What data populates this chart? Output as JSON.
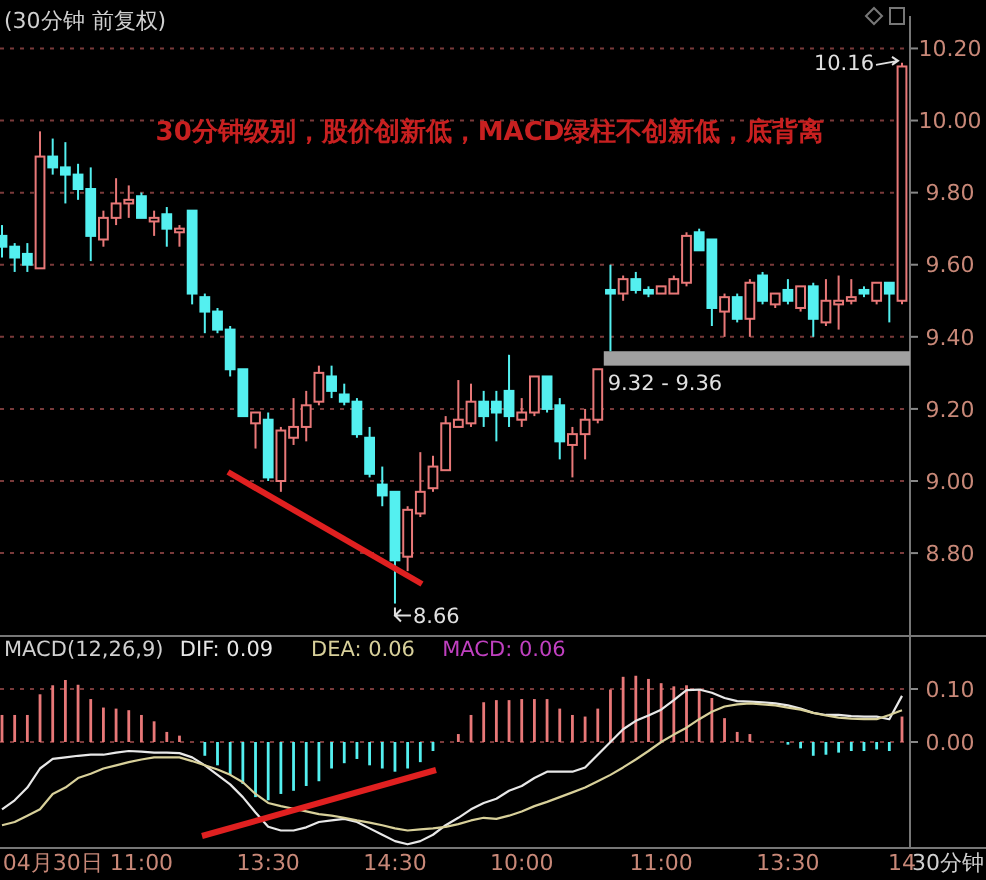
{
  "chart_data": [
    {
      "type": "candlestick",
      "title": "(30分钟 前复权)",
      "categories": [
        null,
        null,
        null,
        null,
        null,
        null,
        null,
        null,
        null,
        null,
        null,
        null,
        null,
        null,
        null,
        null,
        null,
        null,
        null,
        null,
        null,
        null,
        null,
        null,
        null,
        null,
        null,
        null,
        null,
        null,
        null,
        null,
        null,
        null,
        null,
        null,
        null,
        null,
        null,
        null,
        null,
        null,
        null,
        null,
        null,
        null,
        null,
        null,
        null,
        null,
        null,
        null,
        null,
        null,
        null,
        null,
        null,
        null,
        null,
        null,
        null,
        null,
        null,
        null,
        null,
        null,
        null,
        null,
        null,
        null,
        null,
        null
      ],
      "ohlc": [
        [
          9.68,
          9.71,
          9.62,
          9.65
        ],
        [
          9.65,
          9.66,
          9.58,
          9.62
        ],
        [
          9.63,
          9.66,
          9.58,
          9.6
        ],
        [
          9.59,
          9.97,
          9.59,
          9.9
        ],
        [
          9.9,
          9.95,
          9.85,
          9.87
        ],
        [
          9.87,
          9.94,
          9.77,
          9.85
        ],
        [
          9.85,
          9.88,
          9.78,
          9.81
        ],
        [
          9.81,
          9.87,
          9.61,
          9.68
        ],
        [
          9.67,
          9.75,
          9.65,
          9.73
        ],
        [
          9.73,
          9.84,
          9.71,
          9.77
        ],
        [
          9.77,
          9.82,
          9.73,
          9.78
        ],
        [
          9.79,
          9.8,
          9.73,
          9.73
        ],
        [
          9.72,
          9.75,
          9.68,
          9.73
        ],
        [
          9.74,
          9.76,
          9.65,
          9.7
        ],
        [
          9.69,
          9.71,
          9.65,
          9.7
        ],
        [
          9.75,
          9.75,
          9.49,
          9.52
        ],
        [
          9.51,
          9.52,
          9.41,
          9.47
        ],
        [
          9.47,
          9.48,
          9.41,
          9.42
        ],
        [
          9.42,
          9.43,
          9.29,
          9.31
        ],
        [
          9.31,
          9.31,
          9.18,
          9.18
        ],
        [
          9.16,
          9.19,
          9.09,
          9.19
        ],
        [
          9.17,
          9.19,
          9.0,
          9.01
        ],
        [
          9.0,
          9.15,
          8.97,
          9.14
        ],
        [
          9.12,
          9.23,
          9.1,
          9.15
        ],
        [
          9.15,
          9.25,
          9.11,
          9.21
        ],
        [
          9.22,
          9.32,
          9.21,
          9.3
        ],
        [
          9.29,
          9.32,
          9.23,
          9.25
        ],
        [
          9.24,
          9.27,
          9.21,
          9.22
        ],
        [
          9.22,
          9.23,
          9.12,
          9.13
        ],
        [
          9.12,
          9.15,
          9.01,
          9.02
        ],
        [
          8.99,
          9.04,
          8.93,
          8.96
        ],
        [
          8.97,
          8.97,
          8.66,
          8.78
        ],
        [
          8.79,
          8.93,
          8.75,
          8.92
        ],
        [
          8.91,
          9.08,
          8.9,
          8.97
        ],
        [
          8.98,
          9.07,
          8.97,
          9.04
        ],
        [
          9.03,
          9.18,
          9.03,
          9.16
        ],
        [
          9.15,
          9.28,
          9.15,
          9.17
        ],
        [
          9.16,
          9.27,
          9.15,
          9.22
        ],
        [
          9.22,
          9.25,
          9.15,
          9.18
        ],
        [
          9.22,
          9.25,
          9.11,
          9.19
        ],
        [
          9.25,
          9.35,
          9.15,
          9.18
        ],
        [
          9.17,
          9.23,
          9.15,
          9.19
        ],
        [
          9.19,
          9.29,
          9.18,
          9.29
        ],
        [
          9.29,
          9.29,
          9.19,
          9.2
        ],
        [
          9.21,
          9.23,
          9.06,
          9.11
        ],
        [
          9.1,
          9.15,
          9.01,
          9.13
        ],
        [
          9.13,
          9.2,
          9.06,
          9.17
        ],
        [
          9.17,
          9.31,
          9.16,
          9.31
        ],
        [
          9.53,
          9.6,
          9.36,
          9.52
        ],
        [
          9.52,
          9.57,
          9.5,
          9.56
        ],
        [
          9.56,
          9.58,
          9.52,
          9.53
        ],
        [
          9.53,
          9.54,
          9.51,
          9.52
        ],
        [
          9.52,
          9.54,
          9.52,
          9.54
        ],
        [
          9.52,
          9.57,
          9.52,
          9.56
        ],
        [
          9.55,
          9.69,
          9.54,
          9.68
        ],
        [
          9.69,
          9.7,
          9.64,
          9.64
        ],
        [
          9.67,
          9.67,
          9.43,
          9.48
        ],
        [
          9.47,
          9.52,
          9.4,
          9.51
        ],
        [
          9.51,
          9.52,
          9.44,
          9.45
        ],
        [
          9.45,
          9.56,
          9.4,
          9.55
        ],
        [
          9.57,
          9.58,
          9.49,
          9.5
        ],
        [
          9.49,
          9.52,
          9.48,
          9.52
        ],
        [
          9.53,
          9.56,
          9.49,
          9.5
        ],
        [
          9.48,
          9.54,
          9.47,
          9.54
        ],
        [
          9.54,
          9.55,
          9.4,
          9.45
        ],
        [
          9.44,
          9.56,
          9.43,
          9.5
        ],
        [
          9.49,
          9.57,
          9.42,
          9.5
        ],
        [
          9.5,
          9.56,
          9.49,
          9.51
        ],
        [
          9.53,
          9.54,
          9.51,
          9.52
        ],
        [
          9.5,
          9.55,
          9.49,
          9.55
        ],
        [
          9.55,
          9.55,
          9.44,
          9.52
        ],
        [
          9.5,
          10.16,
          9.49,
          10.15
        ]
      ],
      "ylim": [
        8.57,
        10.29
      ],
      "yticks": [
        {
          "value": 8.8,
          "label": "8.80"
        },
        {
          "value": 9.0,
          "label": "9.00"
        },
        {
          "value": 9.2,
          "label": "9.20"
        },
        {
          "value": 9.4,
          "label": "9.40"
        },
        {
          "value": 9.6,
          "label": "9.60"
        },
        {
          "value": 9.8,
          "label": "9.80"
        },
        {
          "value": 10.0,
          "label": "10.00"
        },
        {
          "value": 10.2,
          "label": "10.20"
        }
      ],
      "grid": "y",
      "tick_labels": "y",
      "bands": [
        {
          "axis": "y",
          "from": 9.32,
          "to": 9.36,
          "label": "9.32 - 9.36",
          "color": "#a0a0a0"
        }
      ],
      "annotations": [
        "30分钟级别，股价创新低，MACD绿柱不创新低，底背离",
        "10.16",
        "8.66"
      ]
    },
    {
      "type": "bar",
      "title": "MACD(12,26,9)",
      "categories": [
        null,
        null,
        null,
        null,
        "04月30日",
        null,
        null,
        null,
        null,
        null,
        null,
        "11:00",
        null,
        null,
        null,
        null,
        null,
        null,
        null,
        null,
        null,
        "13:30",
        null,
        null,
        null,
        null,
        null,
        null,
        null,
        null,
        null,
        "14:30",
        null,
        null,
        null,
        null,
        null,
        null,
        null,
        null,
        null,
        "10:00",
        null,
        null,
        null,
        null,
        null,
        null,
        null,
        null,
        null,
        null,
        "11:00",
        null,
        null,
        null,
        null,
        null,
        null,
        null,
        null,
        null,
        "13:30",
        null,
        null,
        null,
        null,
        null,
        null,
        null,
        null,
        "14"
      ],
      "series": [
        {
          "name": "DIF: 0.09",
          "type": "line",
          "color": "#e8e8e8",
          "values": [
            -0.127,
            -0.11,
            -0.086,
            -0.05,
            -0.032,
            -0.029,
            -0.026,
            -0.024,
            -0.024,
            -0.02,
            -0.017,
            -0.018,
            -0.02,
            -0.02,
            -0.021,
            -0.029,
            -0.044,
            -0.062,
            -0.08,
            -0.104,
            -0.133,
            -0.16,
            -0.167,
            -0.167,
            -0.161,
            -0.151,
            -0.148,
            -0.145,
            -0.151,
            -0.163,
            -0.175,
            -0.187,
            -0.193,
            -0.187,
            -0.175,
            -0.157,
            -0.143,
            -0.127,
            -0.115,
            -0.107,
            -0.092,
            -0.083,
            -0.068,
            -0.056,
            -0.056,
            -0.056,
            -0.048,
            -0.024,
            0.0,
            0.024,
            0.04,
            0.05,
            0.061,
            0.079,
            0.098,
            0.099,
            0.093,
            0.083,
            0.077,
            0.076,
            0.075,
            0.073,
            0.069,
            0.063,
            0.055,
            0.051,
            0.051,
            0.049,
            0.048,
            0.048,
            0.043,
            0.087
          ]
        },
        {
          "name": "DEA: 0.06",
          "type": "line",
          "color": "#d8d09a",
          "values": [
            -0.157,
            -0.151,
            -0.139,
            -0.127,
            -0.098,
            -0.086,
            -0.068,
            -0.06,
            -0.05,
            -0.044,
            -0.038,
            -0.033,
            -0.029,
            -0.029,
            -0.029,
            -0.036,
            -0.044,
            -0.052,
            -0.062,
            -0.076,
            -0.098,
            -0.115,
            -0.121,
            -0.126,
            -0.131,
            -0.136,
            -0.139,
            -0.143,
            -0.148,
            -0.152,
            -0.157,
            -0.163,
            -0.167,
            -0.165,
            -0.163,
            -0.16,
            -0.155,
            -0.148,
            -0.143,
            -0.145,
            -0.139,
            -0.131,
            -0.121,
            -0.113,
            -0.104,
            -0.095,
            -0.086,
            -0.074,
            -0.062,
            -0.048,
            -0.033,
            -0.017,
            0.0,
            0.014,
            0.027,
            0.043,
            0.057,
            0.067,
            0.071,
            0.073,
            0.071,
            0.069,
            0.065,
            0.061,
            0.055,
            0.05,
            0.046,
            0.044,
            0.043,
            0.043,
            0.051,
            0.06
          ]
        },
        {
          "name": "MACD: 0.06",
          "type": "bar",
          "colors": [
            "#e87878",
            "#e87878",
            "#e87878",
            "#e87878",
            "#e87878",
            "#e87878",
            "#e87878",
            "#e87878",
            "#e87878",
            "#e87878",
            "#e87878",
            "#e87878",
            "#e87878",
            "#e87878",
            "#e87878",
            null,
            "#54f0f0",
            "#54f0f0",
            "#54f0f0",
            "#54f0f0",
            "#54f0f0",
            "#54f0f0",
            "#54f0f0",
            "#54f0f0",
            "#54f0f0",
            "#54f0f0",
            "#54f0f0",
            "#54f0f0",
            "#54f0f0",
            "#54f0f0",
            "#54f0f0",
            "#54f0f0",
            "#54f0f0",
            "#54f0f0",
            "#54f0f0",
            null,
            "#e87878",
            "#e87878",
            "#e87878",
            "#e87878",
            "#e87878",
            "#e87878",
            "#e87878",
            "#e87878",
            "#e87878",
            "#e87878",
            "#e87878",
            "#e87878",
            "#e87878",
            "#e87878",
            "#e87878",
            "#e87878",
            "#e87878",
            "#e87878",
            "#e87878",
            "#e87878",
            "#e87878",
            "#e87878",
            "#e87878",
            "#e87878",
            null,
            null,
            "#54f0f0",
            "#54f0f0",
            "#54f0f0",
            "#54f0f0",
            "#54f0f0",
            "#54f0f0",
            "#54f0f0",
            "#54f0f0",
            "#54f0f0",
            "#e87878"
          ],
          "values": [
            0.051,
            0.051,
            0.051,
            0.09,
            0.107,
            0.117,
            0.108,
            0.081,
            0.065,
            0.063,
            0.06,
            0.051,
            0.039,
            0.019,
            0.012,
            null,
            -0.026,
            -0.044,
            -0.062,
            -0.079,
            -0.104,
            -0.11,
            -0.098,
            -0.092,
            -0.083,
            -0.074,
            -0.05,
            -0.04,
            -0.032,
            -0.044,
            -0.05,
            -0.056,
            -0.05,
            -0.038,
            -0.017,
            null,
            0.015,
            0.051,
            0.075,
            0.079,
            0.079,
            0.081,
            0.081,
            0.081,
            0.063,
            0.051,
            0.048,
            0.063,
            0.099,
            0.123,
            0.125,
            0.119,
            0.111,
            0.105,
            0.107,
            0.099,
            0.083,
            0.045,
            0.019,
            0.015,
            null,
            null,
            -0.005,
            -0.012,
            -0.026,
            -0.024,
            -0.02,
            -0.017,
            -0.017,
            -0.014,
            -0.017,
            0.048
          ]
        }
      ],
      "ylim": [
        -0.2,
        0.2
      ],
      "yticks": [
        {
          "value": 0,
          "label": "0.00"
        },
        {
          "value": 0.1,
          "label": "0.10"
        }
      ],
      "grid": "y",
      "legend": "top left",
      "annotations": [
        "30分钟"
      ]
    }
  ]
}
